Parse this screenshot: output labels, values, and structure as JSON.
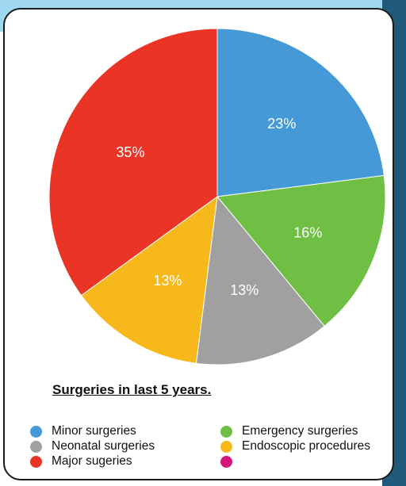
{
  "chart_data": {
    "type": "pie",
    "title": "Surgeries in last 5 years.",
    "slices": [
      {
        "name": "Minor surgeries",
        "value": 23,
        "label": "23%",
        "color": "#4499d6"
      },
      {
        "name": "Emergency surgeries",
        "value": 16,
        "label": "16%",
        "color": "#6fbf44"
      },
      {
        "name": "Neonatal surgeries",
        "value": 13,
        "label": "13%",
        "color": "#a0a0a0"
      },
      {
        "name": "Endoscopic procedures",
        "value": 13,
        "label": "13%",
        "color": "#f7b81c"
      },
      {
        "name": "Major sugeries",
        "value": 35,
        "label": "35%",
        "color": "#ea3526"
      }
    ],
    "legend": [
      {
        "label": "Minor surgeries",
        "color": "#4499d6"
      },
      {
        "label": "Emergency surgeries",
        "color": "#6fbf44"
      },
      {
        "label": "Neonatal surgeries",
        "color": "#a0a0a0"
      },
      {
        "label": "Endoscopic procedures",
        "color": "#f7b81c"
      },
      {
        "label": "Major sugeries",
        "color": "#ea3526"
      },
      {
        "label": "",
        "color": "#d6177a"
      }
    ]
  }
}
